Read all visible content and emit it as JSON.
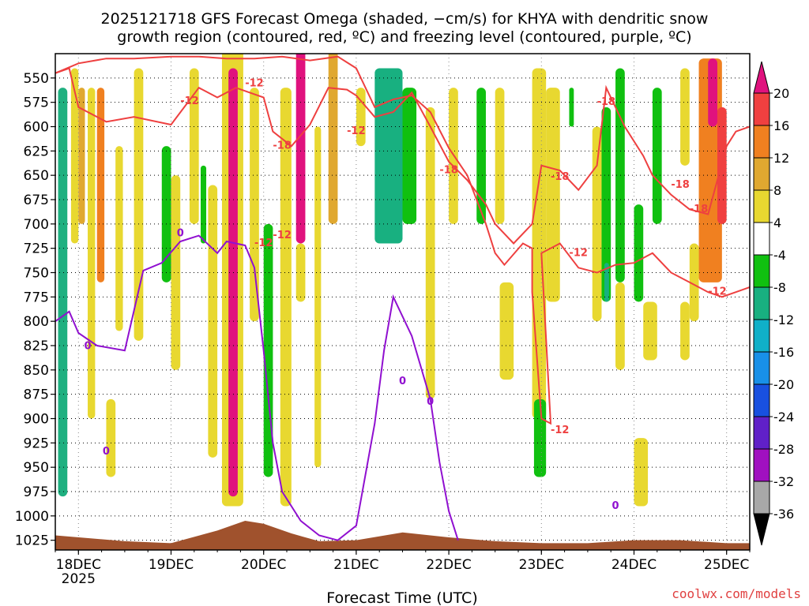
{
  "chart_data": {
    "type": "heatmap",
    "title": "2025121718 GFS Forecast Omega (shaded, −cm/s) for KHYA with dendritic snow",
    "subtitle": "growth region (contoured, red, ºC) and freezing level (contoured, purple, ºC)",
    "xlabel": "Forecast Time (UTC)",
    "ylabel": "",
    "x_ticks": [
      "18DEC",
      "19DEC",
      "20DEC",
      "21DEC",
      "22DEC",
      "23DEC",
      "24DEC",
      "25DEC"
    ],
    "x_tick_sub": "2025",
    "x_range_days": [
      17.75,
      25.25
    ],
    "y_ticks": [
      550,
      575,
      600,
      625,
      650,
      675,
      700,
      725,
      750,
      775,
      800,
      825,
      850,
      875,
      900,
      925,
      950,
      975,
      1000,
      1025
    ],
    "y_range": [
      525,
      1035
    ],
    "colorbar": {
      "labels": [
        20,
        16,
        12,
        8,
        4,
        -4,
        -8,
        -12,
        -16,
        -20,
        -24,
        -28,
        -32,
        -36
      ],
      "colors": [
        "#e0127e",
        "#f04040",
        "#f08020",
        "#e0a830",
        "#e8d830",
        "#ffffff",
        "#10c010",
        "#18b080",
        "#10b0c8",
        "#1890e8",
        "#1850e0",
        "#6020c8",
        "#a010c0",
        "#a8a8a8"
      ],
      "top_cap_color": "#e0127e",
      "bottom_cap_color": "#000000"
    },
    "contour_labels_red": [
      "-12",
      "-18"
    ],
    "contour_labels_purple": [
      "0"
    ],
    "dgz_minus12": [
      [
        17.75,
        545
      ],
      [
        18.0,
        535
      ],
      [
        18.3,
        530
      ],
      [
        18.6,
        530
      ],
      [
        19.0,
        528
      ],
      [
        19.3,
        528
      ],
      [
        19.6,
        530
      ],
      [
        19.9,
        530
      ],
      [
        20.2,
        528
      ],
      [
        20.5,
        532
      ],
      [
        20.8,
        528
      ],
      [
        21.0,
        540
      ],
      [
        21.2,
        580
      ],
      [
        21.4,
        572
      ],
      [
        21.6,
        568
      ],
      [
        21.8,
        585
      ],
      [
        22.0,
        622
      ],
      [
        22.2,
        650
      ],
      [
        22.4,
        700
      ],
      [
        22.5,
        730
      ],
      [
        22.6,
        742
      ],
      [
        22.8,
        720
      ],
      [
        22.9,
        725
      ],
      [
        22.9,
        770
      ],
      [
        23.0,
        900
      ],
      [
        23.1,
        905
      ],
      [
        23.0,
        730
      ],
      [
        23.2,
        720
      ],
      [
        23.4,
        745
      ],
      [
        23.6,
        750
      ],
      [
        23.8,
        742
      ],
      [
        24.0,
        740
      ],
      [
        24.2,
        730
      ],
      [
        24.4,
        750
      ],
      [
        24.6,
        760
      ],
      [
        24.8,
        770
      ],
      [
        24.95,
        775
      ],
      [
        25.1,
        770
      ],
      [
        25.25,
        765
      ]
    ],
    "dgz_minus18": [
      [
        17.75,
        545
      ],
      [
        17.9,
        540
      ],
      [
        18.0,
        580
      ],
      [
        18.3,
        595
      ],
      [
        18.6,
        590
      ],
      [
        19.0,
        598
      ],
      [
        19.3,
        560
      ],
      [
        19.5,
        570
      ],
      [
        19.7,
        560
      ],
      [
        20.0,
        570
      ],
      [
        20.1,
        605
      ],
      [
        20.3,
        620
      ],
      [
        20.5,
        598
      ],
      [
        20.7,
        560
      ],
      [
        20.9,
        562
      ],
      [
        21.0,
        568
      ],
      [
        21.2,
        590
      ],
      [
        21.4,
        585
      ],
      [
        21.6,
        565
      ],
      [
        21.8,
        600
      ],
      [
        22.0,
        636
      ],
      [
        22.2,
        655
      ],
      [
        22.4,
        680
      ],
      [
        22.5,
        700
      ],
      [
        22.7,
        720
      ],
      [
        22.9,
        700
      ],
      [
        23.0,
        640
      ],
      [
        23.2,
        645
      ],
      [
        23.4,
        665
      ],
      [
        23.6,
        640
      ],
      [
        23.7,
        560
      ],
      [
        23.9,
        600
      ],
      [
        24.1,
        630
      ],
      [
        24.2,
        650
      ],
      [
        24.4,
        670
      ],
      [
        24.6,
        685
      ],
      [
        24.8,
        690
      ],
      [
        25.0,
        620
      ],
      [
        25.1,
        605
      ],
      [
        25.25,
        600
      ]
    ],
    "freezing_0C": [
      [
        17.75,
        800
      ],
      [
        17.9,
        790
      ],
      [
        18.0,
        812
      ],
      [
        18.2,
        825
      ],
      [
        18.5,
        830
      ],
      [
        18.7,
        748
      ],
      [
        18.9,
        740
      ],
      [
        19.1,
        718
      ],
      [
        19.3,
        712
      ],
      [
        19.5,
        730
      ],
      [
        19.6,
        718
      ],
      [
        19.7,
        720
      ],
      [
        19.8,
        722
      ],
      [
        19.9,
        745
      ],
      [
        20.0,
        830
      ],
      [
        20.1,
        925
      ],
      [
        20.2,
        975
      ],
      [
        20.4,
        1005
      ],
      [
        20.6,
        1020
      ],
      [
        20.8,
        1025
      ],
      [
        21.0,
        1010
      ],
      [
        21.2,
        905
      ],
      [
        21.3,
        830
      ],
      [
        21.4,
        775
      ],
      [
        21.6,
        815
      ],
      [
        21.8,
        880
      ],
      [
        21.9,
        945
      ],
      [
        22.0,
        995
      ],
      [
        22.1,
        1025
      ]
    ],
    "terrain_top": [
      [
        17.75,
        1020
      ],
      [
        18.5,
        1026
      ],
      [
        19.0,
        1028
      ],
      [
        19.5,
        1015
      ],
      [
        19.8,
        1005
      ],
      [
        20.0,
        1008
      ],
      [
        20.3,
        1018
      ],
      [
        20.6,
        1026
      ],
      [
        21.0,
        1025
      ],
      [
        21.5,
        1017
      ],
      [
        22.0,
        1022
      ],
      [
        22.5,
        1026
      ],
      [
        23.0,
        1028
      ],
      [
        23.5,
        1028
      ],
      [
        24.0,
        1025
      ],
      [
        24.5,
        1025
      ],
      [
        25.0,
        1028
      ],
      [
        25.25,
        1028
      ]
    ],
    "omega_blobs": [
      {
        "t": [
          17.78,
          17.88
        ],
        "p": [
          560,
          980
        ],
        "c": "#1fb080"
      },
      {
        "t": [
          17.92,
          18.0
        ],
        "p": [
          540,
          720
        ],
        "c": "#e8d830"
      },
      {
        "t": [
          18.0,
          18.07
        ],
        "p": [
          560,
          700
        ],
        "c": "#e0a830"
      },
      {
        "t": [
          18.1,
          18.18
        ],
        "p": [
          560,
          900
        ],
        "c": "#e8d830"
      },
      {
        "t": [
          18.2,
          18.28
        ],
        "p": [
          560,
          760
        ],
        "c": "#f08020"
      },
      {
        "t": [
          18.4,
          18.48
        ],
        "p": [
          620,
          810
        ],
        "c": "#e8d830"
      },
      {
        "t": [
          18.3,
          18.4
        ],
        "p": [
          880,
          960
        ],
        "c": "#e8d830"
      },
      {
        "t": [
          18.6,
          18.7
        ],
        "p": [
          540,
          820
        ],
        "c": "#e8d830"
      },
      {
        "t": [
          18.9,
          19.0
        ],
        "p": [
          620,
          760
        ],
        "c": "#10c010"
      },
      {
        "t": [
          19.0,
          19.1
        ],
        "p": [
          650,
          850
        ],
        "c": "#e8d830"
      },
      {
        "t": [
          19.2,
          19.3
        ],
        "p": [
          540,
          700
        ],
        "c": "#e8d830"
      },
      {
        "t": [
          19.32,
          19.38
        ],
        "p": [
          640,
          720
        ],
        "c": "#10c010"
      },
      {
        "t": [
          19.4,
          19.5
        ],
        "p": [
          660,
          940
        ],
        "c": "#e8d830"
      },
      {
        "t": [
          19.55,
          19.78
        ],
        "p": [
          520,
          990
        ],
        "c": "#e8d830"
      },
      {
        "t": [
          19.62,
          19.72
        ],
        "p": [
          540,
          980
        ],
        "c": "#e0127e"
      },
      {
        "t": [
          19.85,
          19.95
        ],
        "p": [
          560,
          800
        ],
        "c": "#e8d830"
      },
      {
        "t": [
          20.0,
          20.1
        ],
        "p": [
          700,
          960
        ],
        "c": "#10c010"
      },
      {
        "t": [
          20.18,
          20.3
        ],
        "p": [
          560,
          990
        ],
        "c": "#e8d830"
      },
      {
        "t": [
          20.35,
          20.45
        ],
        "p": [
          520,
          720
        ],
        "c": "#e0127e"
      },
      {
        "t": [
          20.35,
          20.45
        ],
        "p": [
          720,
          780
        ],
        "c": "#e8d830"
      },
      {
        "t": [
          20.55,
          20.62
        ],
        "p": [
          600,
          950
        ],
        "c": "#e8d830"
      },
      {
        "t": [
          20.7,
          20.8
        ],
        "p": [
          520,
          700
        ],
        "c": "#e0a830"
      },
      {
        "t": [
          21.2,
          21.5
        ],
        "p": [
          540,
          720
        ],
        "c": "#18b080"
      },
      {
        "t": [
          21.5,
          21.65
        ],
        "p": [
          560,
          700
        ],
        "c": "#10c010"
      },
      {
        "t": [
          21.0,
          21.1
        ],
        "p": [
          560,
          620
        ],
        "c": "#e8d830"
      },
      {
        "t": [
          21.75,
          21.85
        ],
        "p": [
          580,
          880
        ],
        "c": "#e8d830"
      },
      {
        "t": [
          22.0,
          22.1
        ],
        "p": [
          560,
          700
        ],
        "c": "#e8d830"
      },
      {
        "t": [
          22.3,
          22.4
        ],
        "p": [
          560,
          700
        ],
        "c": "#10c010"
      },
      {
        "t": [
          22.5,
          22.6
        ],
        "p": [
          560,
          700
        ],
        "c": "#e8d830"
      },
      {
        "t": [
          22.55,
          22.7
        ],
        "p": [
          760,
          860
        ],
        "c": "#e8d830"
      },
      {
        "t": [
          22.9,
          23.05
        ],
        "p": [
          540,
          900
        ],
        "c": "#e8d830"
      },
      {
        "t": [
          22.92,
          23.05
        ],
        "p": [
          880,
          960
        ],
        "c": "#10c010"
      },
      {
        "t": [
          23.05,
          23.2
        ],
        "p": [
          560,
          780
        ],
        "c": "#e8d830"
      },
      {
        "t": [
          23.3,
          23.35
        ],
        "p": [
          560,
          600
        ],
        "c": "#10c010"
      },
      {
        "t": [
          23.55,
          23.65
        ],
        "p": [
          600,
          800
        ],
        "c": "#e8d830"
      },
      {
        "t": [
          23.65,
          23.75
        ],
        "p": [
          580,
          780
        ],
        "c": "#10c010"
      },
      {
        "t": [
          23.68,
          23.73
        ],
        "p": [
          740,
          780
        ],
        "c": "#18b080"
      },
      {
        "t": [
          23.8,
          23.9
        ],
        "p": [
          540,
          760
        ],
        "c": "#10c010"
      },
      {
        "t": [
          23.8,
          23.9
        ],
        "p": [
          760,
          850
        ],
        "c": "#e8d830"
      },
      {
        "t": [
          24.0,
          24.1
        ],
        "p": [
          680,
          780
        ],
        "c": "#10c010"
      },
      {
        "t": [
          24.2,
          24.3
        ],
        "p": [
          560,
          700
        ],
        "c": "#10c010"
      },
      {
        "t": [
          24.1,
          24.25
        ],
        "p": [
          780,
          840
        ],
        "c": "#e8d830"
      },
      {
        "t": [
          24.0,
          24.15
        ],
        "p": [
          920,
          990
        ],
        "c": "#e8d830"
      },
      {
        "t": [
          24.5,
          24.6
        ],
        "p": [
          780,
          840
        ],
        "c": "#e8d830"
      },
      {
        "t": [
          24.7,
          24.95
        ],
        "p": [
          530,
          760
        ],
        "c": "#f08020"
      },
      {
        "t": [
          24.8,
          24.9
        ],
        "p": [
          530,
          600
        ],
        "c": "#e0127e"
      },
      {
        "t": [
          24.9,
          25.0
        ],
        "p": [
          580,
          700
        ],
        "c": "#f04040"
      },
      {
        "t": [
          24.5,
          24.6
        ],
        "p": [
          540,
          640
        ],
        "c": "#e8d830"
      },
      {
        "t": [
          24.6,
          24.7
        ],
        "p": [
          720,
          800
        ],
        "c": "#e8d830"
      }
    ]
  },
  "footer": {
    "watermark": "coolwx.com/models"
  }
}
